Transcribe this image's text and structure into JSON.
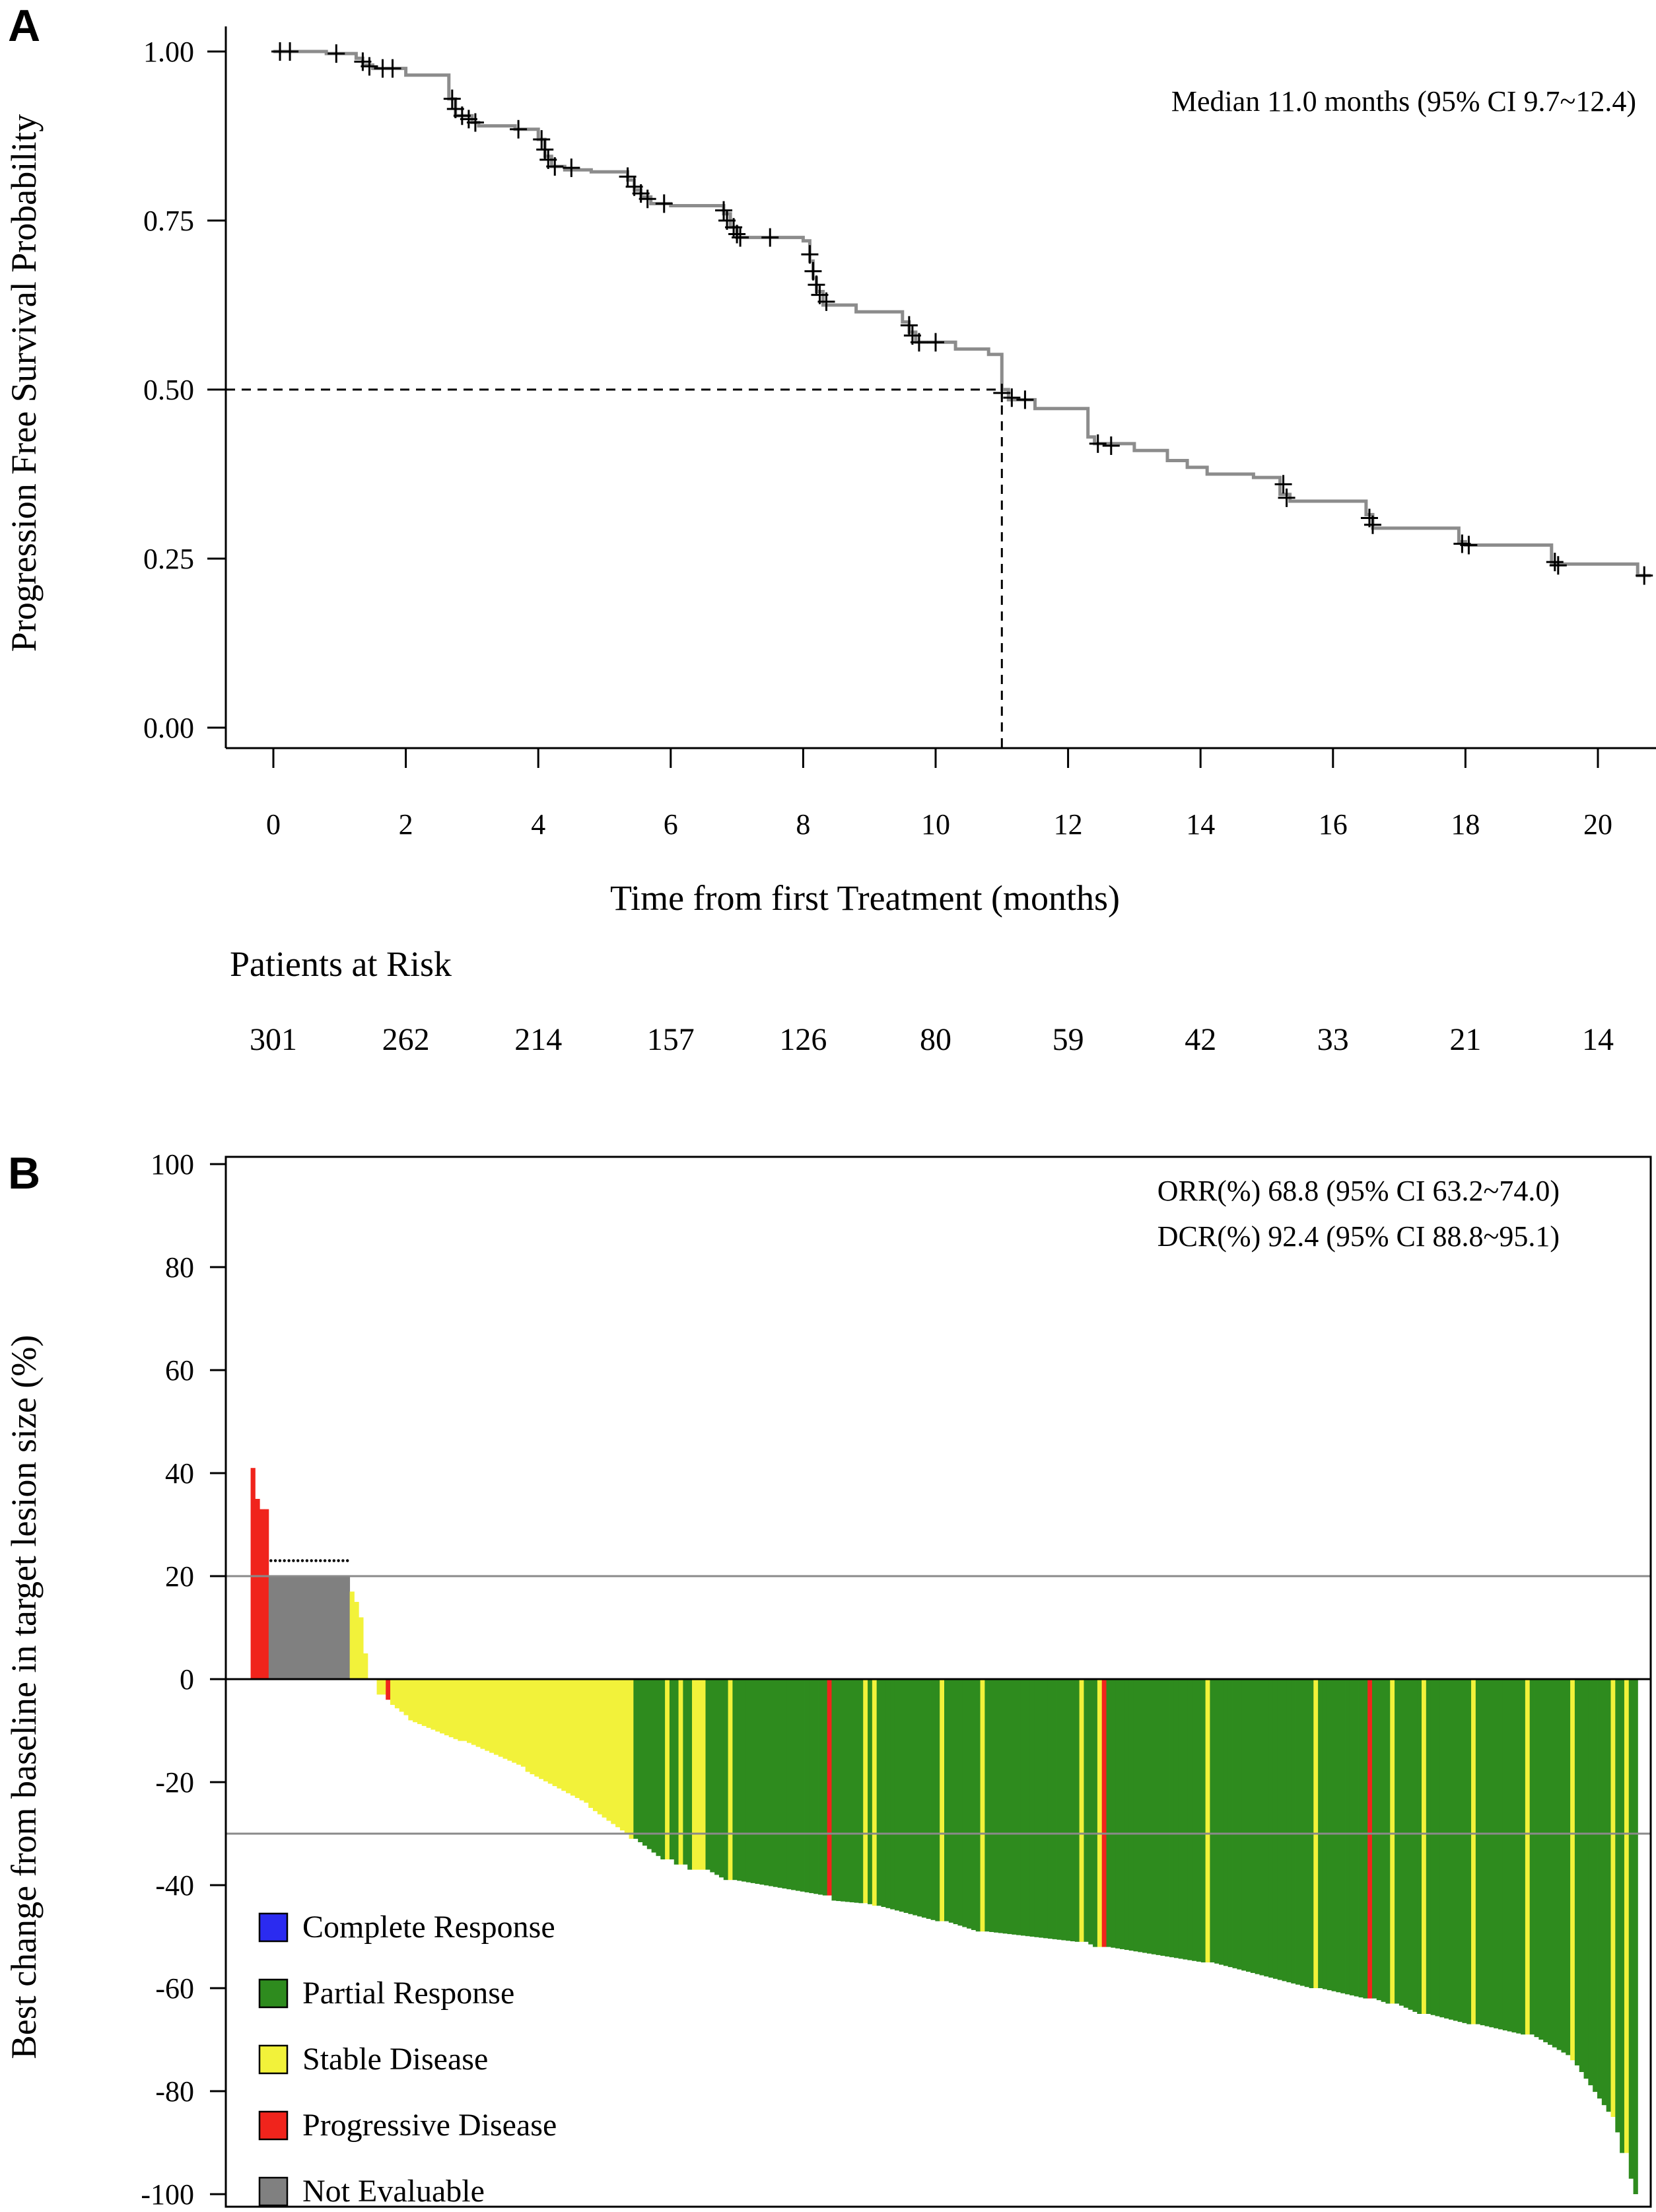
{
  "chart_data": [
    {
      "type": "line",
      "panel_label": "A",
      "title": "",
      "xlabel": "Time from first Treatment (months)",
      "ylabel": "Progression Free Survival Probability",
      "xlim": [
        -0.7,
        20.8
      ],
      "ylim": [
        -0.03,
        1.03
      ],
      "xticks": [
        0,
        2,
        4,
        6,
        8,
        10,
        12,
        14,
        16,
        18,
        20
      ],
      "xtick_labels": [
        "0",
        "2",
        "4",
        "6",
        "8",
        "10",
        "12",
        "14",
        "16",
        "18",
        "20"
      ],
      "yticks": [
        0,
        0.25,
        0.5,
        0.75,
        1.0
      ],
      "ytick_labels": [
        "0.00",
        "0.25",
        "0.50",
        "0.75",
        "1.00"
      ],
      "annotation": "Median 11.0 months (95% CI 9.7~12.4)",
      "median": {
        "x": 11.0,
        "y": 0.5
      },
      "km_curve": [
        [
          0,
          1.0
        ],
        [
          0.8,
          1.0
        ],
        [
          0.8,
          0.997
        ],
        [
          1.25,
          0.997
        ],
        [
          1.25,
          0.99
        ],
        [
          1.35,
          0.99
        ],
        [
          1.35,
          0.98
        ],
        [
          1.5,
          0.98
        ],
        [
          1.5,
          0.975
        ],
        [
          2.0,
          0.975
        ],
        [
          2.0,
          0.965
        ],
        [
          2.65,
          0.965
        ],
        [
          2.65,
          0.93
        ],
        [
          2.75,
          0.93
        ],
        [
          2.75,
          0.905
        ],
        [
          3.0,
          0.905
        ],
        [
          3.0,
          0.895
        ],
        [
          3.1,
          0.895
        ],
        [
          3.1,
          0.89
        ],
        [
          3.65,
          0.89
        ],
        [
          3.65,
          0.885
        ],
        [
          4.0,
          0.885
        ],
        [
          4.0,
          0.87
        ],
        [
          4.1,
          0.87
        ],
        [
          4.1,
          0.845
        ],
        [
          4.2,
          0.845
        ],
        [
          4.2,
          0.83
        ],
        [
          4.4,
          0.83
        ],
        [
          4.4,
          0.825
        ],
        [
          4.8,
          0.825
        ],
        [
          4.8,
          0.822
        ],
        [
          5.35,
          0.822
        ],
        [
          5.35,
          0.81
        ],
        [
          5.45,
          0.81
        ],
        [
          5.45,
          0.795
        ],
        [
          5.55,
          0.795
        ],
        [
          5.55,
          0.785
        ],
        [
          5.7,
          0.785
        ],
        [
          5.7,
          0.775
        ],
        [
          6.0,
          0.775
        ],
        [
          6.0,
          0.772
        ],
        [
          6.8,
          0.772
        ],
        [
          6.8,
          0.76
        ],
        [
          6.9,
          0.76
        ],
        [
          6.9,
          0.74
        ],
        [
          7.0,
          0.74
        ],
        [
          7.0,
          0.725
        ],
        [
          8.0,
          0.725
        ],
        [
          8.0,
          0.72
        ],
        [
          8.1,
          0.72
        ],
        [
          8.1,
          0.69
        ],
        [
          8.15,
          0.69
        ],
        [
          8.15,
          0.665
        ],
        [
          8.2,
          0.665
        ],
        [
          8.2,
          0.645
        ],
        [
          8.3,
          0.645
        ],
        [
          8.3,
          0.625
        ],
        [
          8.8,
          0.625
        ],
        [
          8.8,
          0.615
        ],
        [
          9.5,
          0.615
        ],
        [
          9.5,
          0.6
        ],
        [
          9.6,
          0.6
        ],
        [
          9.6,
          0.585
        ],
        [
          9.7,
          0.585
        ],
        [
          9.7,
          0.57
        ],
        [
          10.3,
          0.57
        ],
        [
          10.3,
          0.56
        ],
        [
          10.8,
          0.56
        ],
        [
          10.8,
          0.552
        ],
        [
          11.0,
          0.552
        ],
        [
          11.0,
          0.5
        ],
        [
          11.1,
          0.5
        ],
        [
          11.1,
          0.485
        ],
        [
          11.5,
          0.485
        ],
        [
          11.5,
          0.472
        ],
        [
          12.3,
          0.472
        ],
        [
          12.3,
          0.43
        ],
        [
          12.4,
          0.43
        ],
        [
          12.4,
          0.42
        ],
        [
          13.0,
          0.42
        ],
        [
          13.0,
          0.41
        ],
        [
          13.5,
          0.41
        ],
        [
          13.5,
          0.395
        ],
        [
          13.8,
          0.395
        ],
        [
          13.8,
          0.385
        ],
        [
          14.1,
          0.385
        ],
        [
          14.1,
          0.375
        ],
        [
          14.8,
          0.375
        ],
        [
          14.8,
          0.37
        ],
        [
          15.2,
          0.37
        ],
        [
          15.2,
          0.345
        ],
        [
          15.35,
          0.345
        ],
        [
          15.35,
          0.335
        ],
        [
          16.5,
          0.335
        ],
        [
          16.5,
          0.315
        ],
        [
          16.6,
          0.315
        ],
        [
          16.6,
          0.295
        ],
        [
          17.9,
          0.295
        ],
        [
          17.9,
          0.275
        ],
        [
          18.0,
          0.275
        ],
        [
          18.0,
          0.27
        ],
        [
          19.3,
          0.27
        ],
        [
          19.3,
          0.242
        ],
        [
          20.6,
          0.242
        ],
        [
          20.6,
          0.225
        ],
        [
          20.8,
          0.225
        ]
      ],
      "censor_marks": [
        [
          0.1,
          1.0
        ],
        [
          0.25,
          1.0
        ],
        [
          0.95,
          0.997
        ],
        [
          1.35,
          0.985
        ],
        [
          1.45,
          0.978
        ],
        [
          1.65,
          0.975
        ],
        [
          1.8,
          0.975
        ],
        [
          2.7,
          0.93
        ],
        [
          2.75,
          0.915
        ],
        [
          2.85,
          0.905
        ],
        [
          2.95,
          0.9
        ],
        [
          3.05,
          0.895
        ],
        [
          3.7,
          0.885
        ],
        [
          4.05,
          0.87
        ],
        [
          4.1,
          0.855
        ],
        [
          4.15,
          0.84
        ],
        [
          4.25,
          0.83
        ],
        [
          4.5,
          0.828
        ],
        [
          5.35,
          0.815
        ],
        [
          5.45,
          0.8
        ],
        [
          5.55,
          0.79
        ],
        [
          5.65,
          0.782
        ],
        [
          5.9,
          0.775
        ],
        [
          6.8,
          0.765
        ],
        [
          6.85,
          0.75
        ],
        [
          6.95,
          0.74
        ],
        [
          7.0,
          0.73
        ],
        [
          7.05,
          0.725
        ],
        [
          7.5,
          0.725
        ],
        [
          8.1,
          0.7
        ],
        [
          8.15,
          0.675
        ],
        [
          8.2,
          0.655
        ],
        [
          8.25,
          0.64
        ],
        [
          8.35,
          0.63
        ],
        [
          9.6,
          0.595
        ],
        [
          9.65,
          0.58
        ],
        [
          9.75,
          0.57
        ],
        [
          10.0,
          0.57
        ],
        [
          11.0,
          0.495
        ],
        [
          11.15,
          0.488
        ],
        [
          11.35,
          0.485
        ],
        [
          12.45,
          0.42
        ],
        [
          12.65,
          0.417
        ],
        [
          15.25,
          0.36
        ],
        [
          15.3,
          0.34
        ],
        [
          16.55,
          0.31
        ],
        [
          16.6,
          0.3
        ],
        [
          17.95,
          0.272
        ],
        [
          18.05,
          0.27
        ],
        [
          19.35,
          0.245
        ],
        [
          19.4,
          0.24
        ],
        [
          20.7,
          0.225
        ]
      ],
      "at_risk_title": "Patients at Risk",
      "at_risk": [
        {
          "t": 0,
          "n": "301"
        },
        {
          "t": 2,
          "n": "262"
        },
        {
          "t": 4,
          "n": "214"
        },
        {
          "t": 6,
          "n": "157"
        },
        {
          "t": 8,
          "n": "126"
        },
        {
          "t": 10,
          "n": "80"
        },
        {
          "t": 12,
          "n": "59"
        },
        {
          "t": 14,
          "n": "42"
        },
        {
          "t": 16,
          "n": "33"
        },
        {
          "t": 18,
          "n": "21"
        },
        {
          "t": 20,
          "n": "14"
        }
      ]
    },
    {
      "type": "bar",
      "panel_label": "B",
      "title": "",
      "xlabel": "",
      "ylabel": "Best change from baseline in target lesion size (%)",
      "ylim": [
        -100,
        100
      ],
      "yticks": [
        -100,
        -80,
        -60,
        -40,
        -20,
        0,
        20,
        40,
        60,
        80,
        100
      ],
      "ytick_labels": [
        "-100",
        "-80",
        "-60",
        "-40",
        "-20",
        "0",
        "20",
        "40",
        "60",
        "80",
        "100"
      ],
      "reference_lines": [
        20,
        -30
      ],
      "annotations": [
        "ORR(%)  68.8  (95% CI  63.2~74.0)",
        "DCR(%)  92.4  (95% CI  88.8~95.1)"
      ],
      "not_evaluable_plot_value": 20,
      "legend": [
        {
          "label": "Complete Response",
          "color": "#2b2bf0"
        },
        {
          "label": "Partial Response",
          "color": "#2e8b1e"
        },
        {
          "label": "Stable Disease",
          "color": "#f2f23a"
        },
        {
          "label": "Progressive Disease",
          "color": "#f0241c"
        },
        {
          "label": "Not Evaluable",
          "color": "#808080"
        }
      ],
      "legend_position": "bottom-left",
      "segments": [
        {
          "n": 1,
          "from": 41,
          "to": 41,
          "cat": "PD"
        },
        {
          "n": 1,
          "from": 35,
          "to": 35,
          "cat": "PD"
        },
        {
          "n": 2,
          "from": 33,
          "to": 33,
          "cat": "PD"
        },
        {
          "n": 18,
          "from": 20,
          "to": 20,
          "cat": "NE"
        },
        {
          "n": 1,
          "from": 17,
          "to": 17,
          "cat": "SD"
        },
        {
          "n": 1,
          "from": 15,
          "to": 15,
          "cat": "SD"
        },
        {
          "n": 1,
          "from": 12,
          "to": 12,
          "cat": "SD"
        },
        {
          "n": 1,
          "from": 5,
          "to": 5,
          "cat": "SD"
        },
        {
          "n": 2,
          "from": 0,
          "to": 0,
          "cat": "SD"
        },
        {
          "n": 2,
          "from": -3,
          "to": -3,
          "cat": "SD"
        },
        {
          "n": 1,
          "from": -4,
          "to": -4,
          "cat": "PD"
        },
        {
          "n": 4,
          "from": -5,
          "to": -7,
          "cat": "SD"
        },
        {
          "n": 12,
          "from": -8,
          "to": -12,
          "cat": "SD"
        },
        {
          "n": 14,
          "from": -12,
          "to": -17,
          "cat": "SD"
        },
        {
          "n": 14,
          "from": -18,
          "to": -24,
          "cat": "SD"
        },
        {
          "n": 9,
          "from": -25,
          "to": -30,
          "cat": "SD"
        },
        {
          "n": 1,
          "from": -31,
          "to": -31,
          "cat": "SD"
        },
        {
          "n": 7,
          "from": -31,
          "to": -35,
          "cat": "PR"
        },
        {
          "n": 1,
          "from": -35,
          "to": -35,
          "cat": "SD"
        },
        {
          "n": 2,
          "from": -35,
          "to": -36,
          "cat": "PR"
        },
        {
          "n": 1,
          "from": -36,
          "to": -36,
          "cat": "SD"
        },
        {
          "n": 2,
          "from": -36,
          "to": -37,
          "cat": "PR"
        },
        {
          "n": 3,
          "from": -37,
          "to": -37,
          "cat": "SD"
        },
        {
          "n": 5,
          "from": -37,
          "to": -39,
          "cat": "PR"
        },
        {
          "n": 1,
          "from": -39,
          "to": -39,
          "cat": "SD"
        },
        {
          "n": 21,
          "from": -39,
          "to": -42,
          "cat": "PR"
        },
        {
          "n": 1,
          "from": -42,
          "to": -42,
          "cat": "PD"
        },
        {
          "n": 7,
          "from": -43,
          "to": -43.5,
          "cat": "PR"
        },
        {
          "n": 1,
          "from": -43.5,
          "to": -43.5,
          "cat": "SD"
        },
        {
          "n": 1,
          "from": -43.7,
          "to": -43.7,
          "cat": "PR"
        },
        {
          "n": 1,
          "from": -44,
          "to": -44,
          "cat": "SD"
        },
        {
          "n": 14,
          "from": -44,
          "to": -47,
          "cat": "PR"
        },
        {
          "n": 1,
          "from": -47,
          "to": -47,
          "cat": "SD"
        },
        {
          "n": 8,
          "from": -47,
          "to": -49,
          "cat": "PR"
        },
        {
          "n": 1,
          "from": -49,
          "to": -49,
          "cat": "SD"
        },
        {
          "n": 21,
          "from": -49,
          "to": -51,
          "cat": "PR"
        },
        {
          "n": 1,
          "from": -51,
          "to": -51,
          "cat": "SD"
        },
        {
          "n": 3,
          "from": -51,
          "to": -52,
          "cat": "PR"
        },
        {
          "n": 1,
          "from": -52,
          "to": -52,
          "cat": "SD"
        },
        {
          "n": 1,
          "from": -52,
          "to": -52,
          "cat": "PD"
        },
        {
          "n": 22,
          "from": -52,
          "to": -55,
          "cat": "PR"
        },
        {
          "n": 1,
          "from": -55,
          "to": -55,
          "cat": "SD"
        },
        {
          "n": 23,
          "from": -55,
          "to": -60,
          "cat": "PR"
        },
        {
          "n": 1,
          "from": -60,
          "to": -60,
          "cat": "SD"
        },
        {
          "n": 11,
          "from": -60,
          "to": -62,
          "cat": "PR"
        },
        {
          "n": 1,
          "from": -62,
          "to": -62,
          "cat": "PD"
        },
        {
          "n": 4,
          "from": -62,
          "to": -63,
          "cat": "PR"
        },
        {
          "n": 1,
          "from": -63,
          "to": -63,
          "cat": "SD"
        },
        {
          "n": 6,
          "from": -63,
          "to": -65,
          "cat": "PR"
        },
        {
          "n": 1,
          "from": -65,
          "to": -65,
          "cat": "SD"
        },
        {
          "n": 10,
          "from": -65,
          "to": -67,
          "cat": "PR"
        },
        {
          "n": 1,
          "from": -67,
          "to": -67,
          "cat": "SD"
        },
        {
          "n": 11,
          "from": -67,
          "to": -69,
          "cat": "PR"
        },
        {
          "n": 1,
          "from": -69,
          "to": -69,
          "cat": "SD"
        },
        {
          "n": 9,
          "from": -69,
          "to": -73,
          "cat": "PR"
        },
        {
          "n": 1,
          "from": -74,
          "to": -74,
          "cat": "SD"
        },
        {
          "n": 8,
          "from": -75,
          "to": -84,
          "cat": "PR"
        },
        {
          "n": 1,
          "from": -85,
          "to": -85,
          "cat": "SD"
        },
        {
          "n": 2,
          "from": -88,
          "to": -92,
          "cat": "PR"
        },
        {
          "n": 1,
          "from": -92,
          "to": -92,
          "cat": "SD"
        },
        {
          "n": 2,
          "from": -97,
          "to": -100,
          "cat": "PR"
        }
      ]
    }
  ]
}
